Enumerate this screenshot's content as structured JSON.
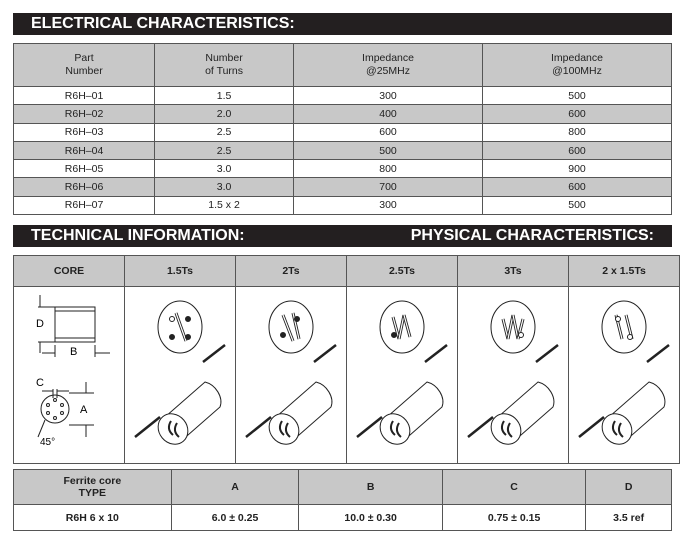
{
  "electrical": {
    "title": "ELECTRICAL CHARACTERISTICS:",
    "headers": [
      [
        "Part",
        "Number"
      ],
      [
        "Number",
        "of Turns"
      ],
      [
        "Impedance",
        "@25MHz"
      ],
      [
        "Impedance",
        "@100MHz"
      ]
    ],
    "rows": [
      [
        "R6H–01",
        "1.5",
        "300",
        "500"
      ],
      [
        "R6H–02",
        "2.0",
        "400",
        "600"
      ],
      [
        "R6H–03",
        "2.5",
        "600",
        "800"
      ],
      [
        "R6H–04",
        "2.5",
        "500",
        "600"
      ],
      [
        "R6H–05",
        "3.0",
        "800",
        "900"
      ],
      [
        "R6H–06",
        "3.0",
        "700",
        "600"
      ],
      [
        "R6H–07",
        "1.5 x 2",
        "300",
        "500"
      ]
    ]
  },
  "section2": {
    "left_title": "TECHNICAL INFORMATION:",
    "right_title": "PHYSICAL CHARACTERISTICS:"
  },
  "technical": {
    "headers": [
      "CORE",
      "1.5Ts",
      "2Ts",
      "2.5Ts",
      "3Ts",
      "2 x 1.5Ts"
    ],
    "core_labels": {
      "d": "D",
      "b": "B",
      "c": "C",
      "a": "A",
      "angle": "45°"
    }
  },
  "physical": {
    "headers": [
      [
        "Ferrite core",
        "TYPE"
      ],
      [
        "A"
      ],
      [
        "B"
      ],
      [
        "C"
      ],
      [
        "D"
      ]
    ],
    "row": [
      "R6H  6 x 10",
      "6.0 ± 0.25",
      "10.0 ± 0.30",
      "0.75 ± 0.15",
      "3.5 ref"
    ]
  }
}
